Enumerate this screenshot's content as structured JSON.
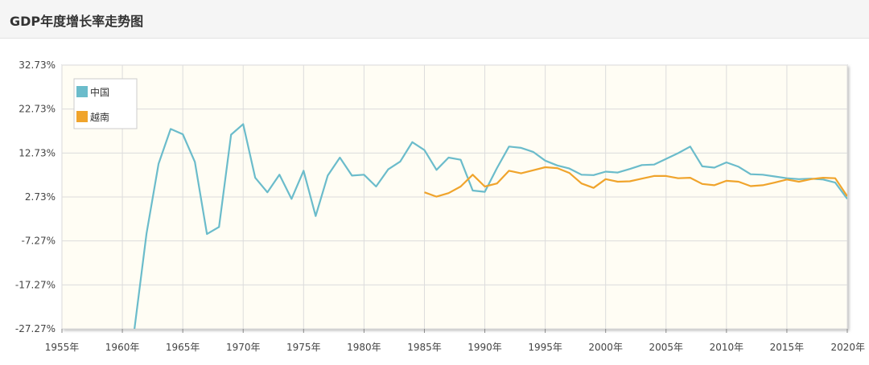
{
  "header": {
    "title": "GDP年度增长率走势图"
  },
  "chart_data": {
    "type": "line",
    "title": "GDP年度增长率走势图",
    "xlabel": "",
    "ylabel": "",
    "xlim": [
      1955,
      2020
    ],
    "ylim": [
      -27.27,
      32.73
    ],
    "y_ticks": [
      "32.73%",
      "22.73%",
      "12.73%",
      "2.73%",
      "-7.27%",
      "-17.27%",
      "-27.27%"
    ],
    "y_tick_values": [
      32.73,
      22.73,
      12.73,
      2.73,
      -7.27,
      -17.27,
      -27.27
    ],
    "x_ticks": [
      "1955年",
      "1960年",
      "1965年",
      "1970年",
      "1975年",
      "1980年",
      "1985年",
      "1990年",
      "1995年",
      "2000年",
      "2005年",
      "2010年",
      "2015年",
      "2020年"
    ],
    "x_tick_values": [
      1955,
      1960,
      1965,
      1970,
      1975,
      1980,
      1985,
      1990,
      1995,
      2000,
      2005,
      2010,
      2015,
      2020
    ],
    "grid": true,
    "legend_position": "top-left",
    "series": [
      {
        "name": "中国",
        "color": "#6bbccb",
        "x": [
          1961,
          1962,
          1963,
          1964,
          1965,
          1966,
          1967,
          1968,
          1969,
          1970,
          1971,
          1972,
          1973,
          1974,
          1975,
          1976,
          1977,
          1978,
          1979,
          1980,
          1981,
          1982,
          1983,
          1984,
          1985,
          1986,
          1987,
          1988,
          1989,
          1990,
          1991,
          1992,
          1993,
          1994,
          1995,
          1996,
          1997,
          1998,
          1999,
          2000,
          2001,
          2002,
          2003,
          2004,
          2005,
          2006,
          2007,
          2008,
          2009,
          2010,
          2011,
          2012,
          2013,
          2014,
          2015,
          2016,
          2017,
          2018,
          2019,
          2020
        ],
        "y": [
          -27.3,
          -5.6,
          10.3,
          18.2,
          17.0,
          10.7,
          -5.7,
          -4.1,
          16.9,
          19.3,
          7.1,
          3.8,
          7.8,
          2.3,
          8.7,
          -1.6,
          7.6,
          11.7,
          7.6,
          7.8,
          5.1,
          9.0,
          10.8,
          15.2,
          13.4,
          8.9,
          11.7,
          11.2,
          4.2,
          3.9,
          9.3,
          14.2,
          13.9,
          13.0,
          11.0,
          9.9,
          9.2,
          7.8,
          7.7,
          8.5,
          8.3,
          9.1,
          10.0,
          10.1,
          11.4,
          12.7,
          14.2,
          9.7,
          9.4,
          10.6,
          9.6,
          7.9,
          7.8,
          7.4,
          7.0,
          6.8,
          6.9,
          6.7,
          6.0,
          2.3
        ]
      },
      {
        "name": "越南",
        "color": "#f0a42c",
        "x": [
          1985,
          1986,
          1987,
          1988,
          1989,
          1990,
          1991,
          1992,
          1993,
          1994,
          1995,
          1996,
          1997,
          1998,
          1999,
          2000,
          2001,
          2002,
          2003,
          2004,
          2005,
          2006,
          2007,
          2008,
          2009,
          2010,
          2011,
          2012,
          2013,
          2014,
          2015,
          2016,
          2017,
          2018,
          2019,
          2020
        ],
        "y": [
          3.8,
          2.8,
          3.6,
          5.1,
          7.8,
          5.1,
          5.8,
          8.7,
          8.1,
          8.8,
          9.5,
          9.3,
          8.2,
          5.8,
          4.8,
          6.8,
          6.2,
          6.3,
          6.9,
          7.5,
          7.5,
          7.0,
          7.1,
          5.7,
          5.4,
          6.4,
          6.2,
          5.2,
          5.4,
          6.0,
          6.7,
          6.2,
          6.8,
          7.1,
          7.0,
          2.9
        ]
      }
    ]
  }
}
